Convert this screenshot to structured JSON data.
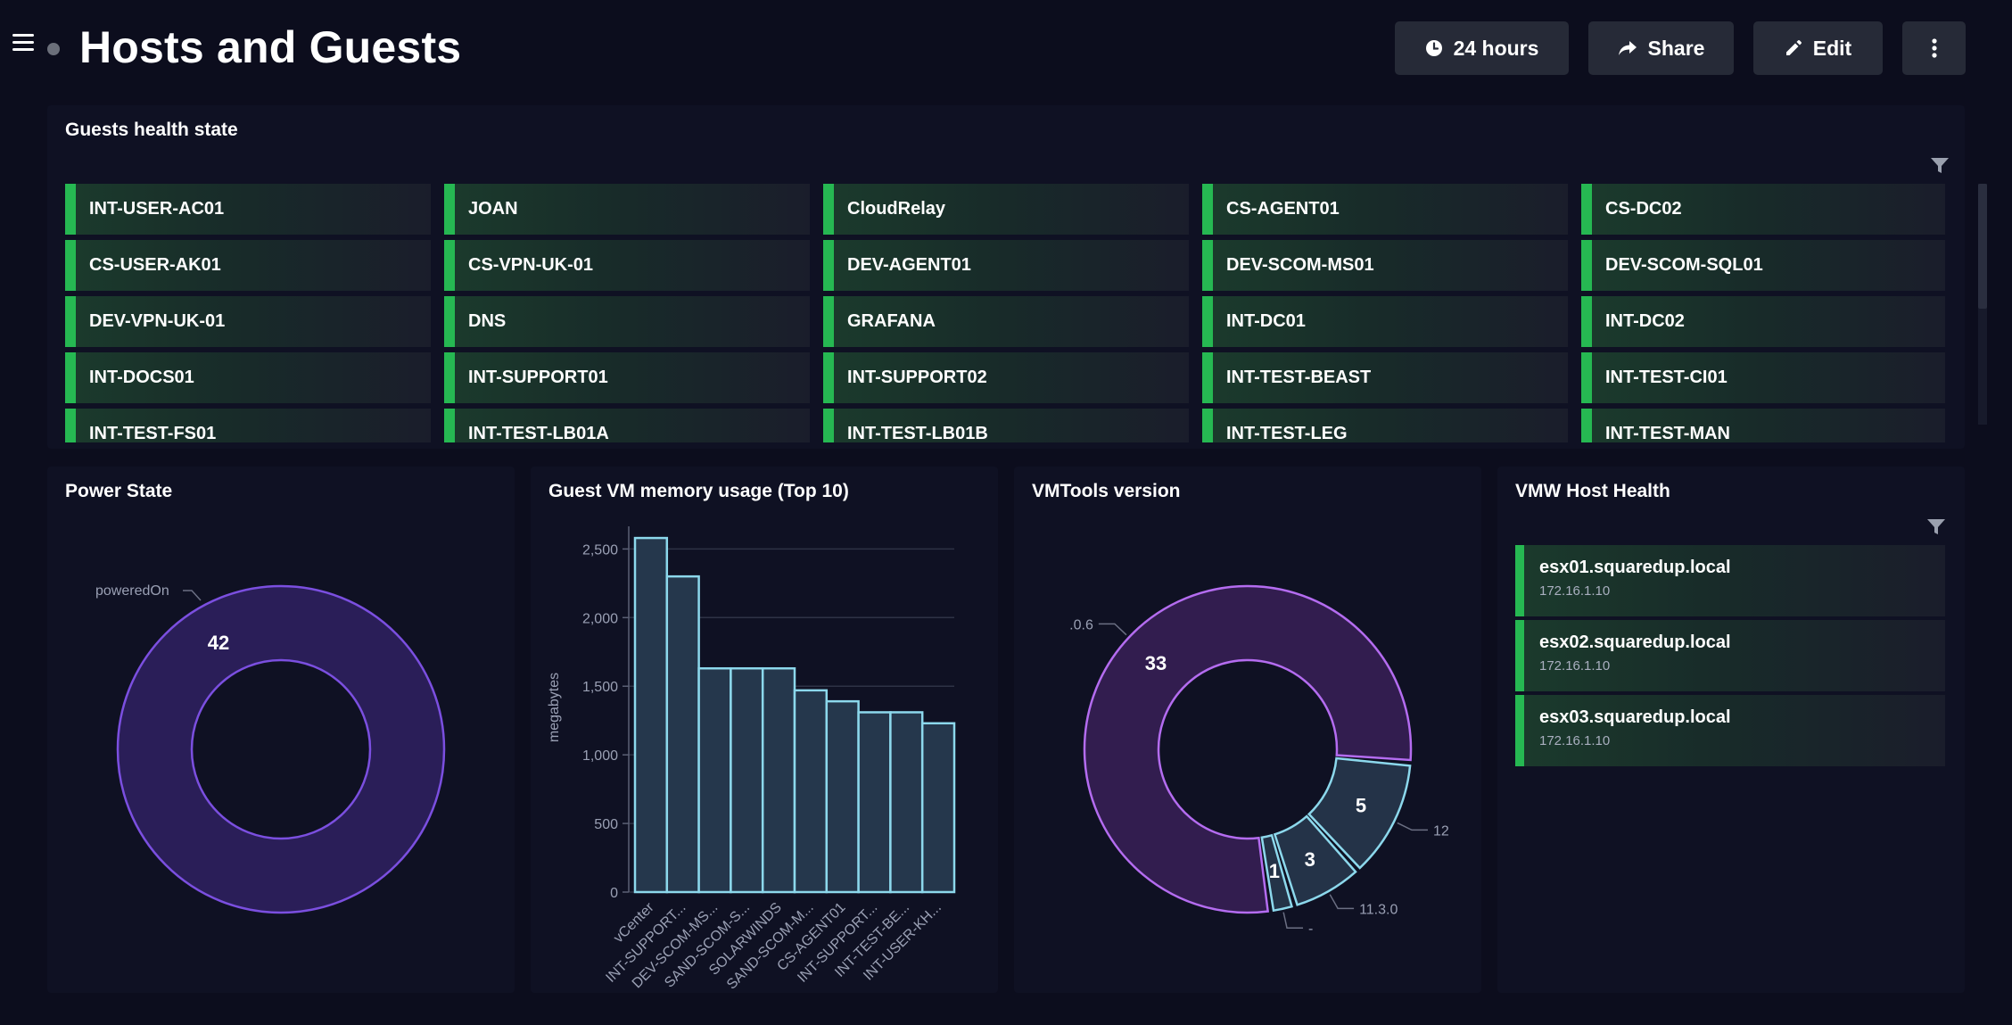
{
  "header": {
    "title": "Hosts and Guests",
    "buttons": {
      "timeframe": "24 hours",
      "share": "Share",
      "edit": "Edit"
    }
  },
  "guests_panel": {
    "title": "Guests health state",
    "status_color": "#26b852",
    "guests": [
      "INT-USER-AC01",
      "JOAN",
      "CloudRelay",
      "CS-AGENT01",
      "CS-DC02",
      "CS-USER-AK01",
      "CS-VPN-UK-01",
      "DEV-AGENT01",
      "DEV-SCOM-MS01",
      "DEV-SCOM-SQL01",
      "DEV-VPN-UK-01",
      "DNS",
      "GRAFANA",
      "INT-DC01",
      "INT-DC02",
      "INT-DOCS01",
      "INT-SUPPORT01",
      "INT-SUPPORT02",
      "INT-TEST-BEAST",
      "INT-TEST-CI01",
      "INT-TEST-FS01",
      "INT-TEST-LB01A",
      "INT-TEST-LB01B",
      "INT-TEST-LEG",
      "INT-TEST-MAN"
    ]
  },
  "power_state_panel": {
    "title": "Power State",
    "chart_data": {
      "type": "pie",
      "donut": true,
      "slices": [
        {
          "label": "poweredOn",
          "value": 42,
          "color": "#7b4fe0"
        }
      ]
    }
  },
  "memory_panel": {
    "title": "Guest VM memory usage (Top 10)",
    "chart_data": {
      "type": "bar",
      "ylabel": "megabytes",
      "ylim": [
        0,
        2600
      ],
      "yticks": [
        "0",
        "500",
        "1,000",
        "1,500",
        "2,000",
        "2,500"
      ],
      "ytick_values": [
        0,
        500,
        1000,
        1500,
        2000,
        2500
      ],
      "categories": [
        "vCenter",
        "INT-SUPPORT...",
        "DEV-SCOM-MS...",
        "SAND-SCOM-S...",
        "SOLARWINDS",
        "SAND-SCOM-M...",
        "CS-AGENT01",
        "INT-SUPPORT...",
        "INT-TEST-BE...",
        "INT-USER-KH..."
      ],
      "values": [
        2580,
        2300,
        1630,
        1630,
        1630,
        1470,
        1390,
        1310,
        1310,
        1230
      ],
      "color": "#8cd8ec"
    }
  },
  "vmtools_panel": {
    "title": "VMTools version",
    "chart_data": {
      "type": "pie",
      "donut": true,
      "slices": [
        {
          "label": ".0.6",
          "value": 33,
          "color": "#b46cf0"
        },
        {
          "label": "12",
          "value": 5,
          "color": "#8cd8ec"
        },
        {
          "label": "11.3.0",
          "value": 3,
          "color": "#8cd8ec"
        },
        {
          "label": "-",
          "value": 1,
          "color": "#8cd8ec"
        }
      ]
    }
  },
  "host_panel": {
    "title": "VMW Host Health",
    "hosts": [
      {
        "name": "esx01.squaredup.local",
        "ip": "172.16.1.10"
      },
      {
        "name": "esx02.squaredup.local",
        "ip": "172.16.1.10"
      },
      {
        "name": "esx03.squaredup.local",
        "ip": "172.16.1.10"
      }
    ]
  }
}
